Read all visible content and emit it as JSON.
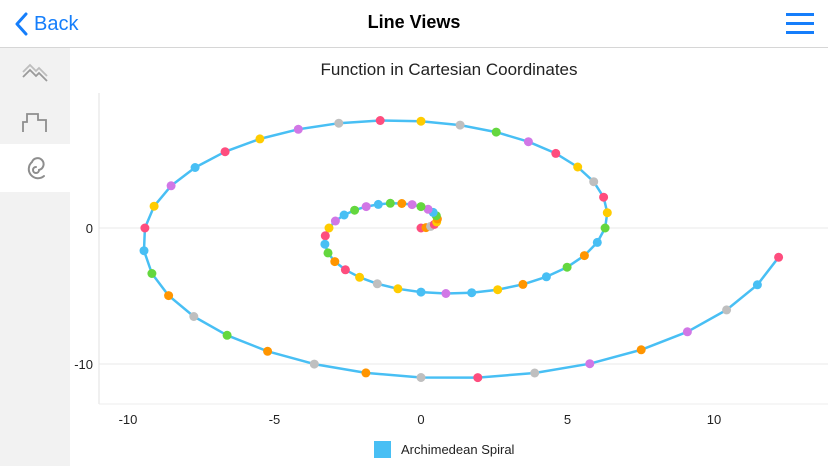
{
  "navbar": {
    "back_label": "Back",
    "title": "Line Views",
    "menu_icon": "hamburger-menu-icon"
  },
  "sidebar": {
    "items": [
      {
        "icon": "mountain-line-icon",
        "active": false
      },
      {
        "icon": "step-line-icon",
        "active": false
      },
      {
        "icon": "spiral-icon",
        "active": true
      }
    ]
  },
  "colors": {
    "accent": "#157efb",
    "line": "#48bff4",
    "grid": "#e8e8e8",
    "sidebar_bg": "#f2f2f2"
  },
  "chart_data": {
    "type": "line",
    "title": "Function in Cartesian Coordinates",
    "xlabel": "",
    "ylabel": "",
    "xlim": [
      -11,
      14
    ],
    "ylim": [
      -13,
      10
    ],
    "x_ticks": [
      "-10",
      "-5",
      "0",
      "5",
      "10"
    ],
    "x_tick_values": [
      -10,
      -5,
      0,
      5,
      10
    ],
    "y_ticks": [
      "0",
      "-10"
    ],
    "y_tick_values": [
      0,
      -10
    ],
    "grid": "horizontal",
    "legend_position": "bottom",
    "series": [
      {
        "name": "Archimedean Spiral",
        "color": "#48bff4",
        "formula": "r = theta; x = theta*cos(theta); y = theta*sin(theta)",
        "theta_start_deg": 0,
        "theta_step_deg": 10,
        "point_count": 72,
        "marker_palette": {
          "pink": "#fe4d7e",
          "orange": "#ff9500",
          "gray": "#bfbfbf",
          "yellow": "#ffcc00",
          "green": "#64d73e",
          "blue": "#48bff4",
          "purple": "#d177e6"
        },
        "marker_colors": [
          "pink",
          "orange",
          "gray",
          "pink",
          "yellow",
          "orange",
          "green",
          "blue",
          "purple",
          "green",
          "purple",
          "orange",
          "green",
          "blue",
          "purple",
          "green",
          "blue",
          "purple",
          "yellow",
          "pink",
          "blue",
          "green",
          "orange",
          "pink",
          "yellow",
          "gray",
          "yellow",
          "blue",
          "purple",
          "blue",
          "yellow",
          "orange",
          "blue",
          "green",
          "orange",
          "blue",
          "green",
          "yellow",
          "pink",
          "gray",
          "yellow",
          "pink",
          "purple",
          "green",
          "gray",
          "yellow",
          "pink",
          "gray",
          "purple",
          "yellow",
          "pink",
          "blue",
          "purple",
          "yellow",
          "pink",
          "blue",
          "green",
          "orange",
          "gray",
          "green",
          "orange",
          "gray",
          "orange",
          "gray",
          "pink",
          "gray",
          "purple",
          "orange",
          "purple",
          "gray",
          "blue",
          "pink"
        ]
      }
    ]
  }
}
